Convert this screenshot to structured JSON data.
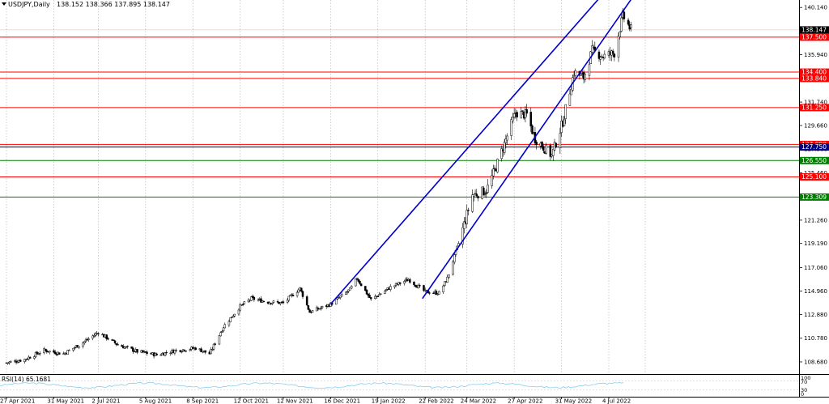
{
  "header": {
    "menu_icon": "triangle-down-icon",
    "symbol": "USDJPY,Daily",
    "ohlc": "138.152 138.366 137.895 138.147"
  },
  "rsi_panel": {
    "label": "RSI(14) 65.1681",
    "levels": [
      "100",
      "70",
      "30",
      "0"
    ],
    "current_value": 65.1681,
    "series_color": "#87CEEB"
  },
  "chart_data": {
    "type": "candlestick",
    "title": "USDJPY,Daily",
    "ylim": [
      107.6,
      140.8
    ],
    "price_ticks": [
      "140.140",
      "137.940",
      "135.940",
      "133.840",
      "131.740",
      "129.660",
      "127.560",
      "125.460",
      "123.360",
      "121.260",
      "119.190",
      "117.060",
      "114.960",
      "112.880",
      "110.780",
      "108.680"
    ],
    "x_ticks": [
      "27 Apr 2021",
      "31 May 2021",
      "2 Jul 2021",
      "5 Aug 2021",
      "8 Sep 2021",
      "12 Oct 2021",
      "12 Nov 2021",
      "16 Dec 2021",
      "19 Jan 2022",
      "22 Feb 2022",
      "24 Mar 2022",
      "27 Apr 2022",
      "31 May 2022",
      "4 Jul 2022"
    ],
    "grid": true,
    "current_price": "138.147",
    "horizontal_levels": [
      {
        "label": "137.500",
        "value": 137.5,
        "color": "#FF0000"
      },
      {
        "label": "134.400",
        "value": 134.4,
        "color": "#FF0000"
      },
      {
        "label": "133.840",
        "value": 133.84,
        "color": "#FF0000"
      },
      {
        "label": "131.250",
        "value": 131.25,
        "color": "#FF0000"
      },
      {
        "label": "127.980",
        "value": 127.98,
        "color": "#FF0000"
      },
      {
        "label": "127.750",
        "value": 127.75,
        "color": "#000080"
      },
      {
        "label": "126.550",
        "value": 126.55,
        "color": "#008000"
      },
      {
        "label": "125.100",
        "value": 125.1,
        "color": "#FF0000"
      },
      {
        "label": "123.309",
        "value": 123.309,
        "color": "#008000"
      }
    ],
    "trend_channel": {
      "color": "#0000CD",
      "upper": [
        {
          "date": "2021-12-16",
          "value": 113.8
        },
        {
          "date": "2022-07-01",
          "value": 141.5
        }
      ],
      "lower": [
        {
          "date": "2022-02-20",
          "value": 114.3
        },
        {
          "date": "2022-07-22",
          "value": 141.2
        }
      ]
    },
    "series": [
      {
        "x": "2021-04-27",
        "close": 108.6
      },
      {
        "x": "2021-05-10",
        "close": 108.9
      },
      {
        "x": "2021-05-24",
        "close": 109.7
      },
      {
        "x": "2021-06-07",
        "close": 109.4
      },
      {
        "x": "2021-06-21",
        "close": 110.4
      },
      {
        "x": "2021-07-02",
        "close": 111.3
      },
      {
        "x": "2021-07-16",
        "close": 110.2
      },
      {
        "x": "2021-07-30",
        "close": 109.6
      },
      {
        "x": "2021-08-13",
        "close": 109.3
      },
      {
        "x": "2021-08-27",
        "close": 109.7
      },
      {
        "x": "2021-09-10",
        "close": 109.9
      },
      {
        "x": "2021-09-20",
        "close": 109.4
      },
      {
        "x": "2021-09-30",
        "close": 111.8
      },
      {
        "x": "2021-10-12",
        "close": 113.6
      },
      {
        "x": "2021-10-20",
        "close": 114.3
      },
      {
        "x": "2021-11-01",
        "close": 114.0
      },
      {
        "x": "2021-11-12",
        "close": 113.9
      },
      {
        "x": "2021-11-24",
        "close": 115.2
      },
      {
        "x": "2021-12-01",
        "close": 113.1
      },
      {
        "x": "2021-12-16",
        "close": 113.8
      },
      {
        "x": "2021-12-30",
        "close": 115.1
      },
      {
        "x": "2022-01-04",
        "close": 116.1
      },
      {
        "x": "2022-01-14",
        "close": 114.2
      },
      {
        "x": "2022-01-28",
        "close": 115.3
      },
      {
        "x": "2022-02-10",
        "close": 116.0
      },
      {
        "x": "2022-02-22",
        "close": 114.9
      },
      {
        "x": "2022-03-04",
        "close": 114.8
      },
      {
        "x": "2022-03-10",
        "close": 116.1
      },
      {
        "x": "2022-03-18",
        "close": 119.2
      },
      {
        "x": "2022-03-28",
        "close": 123.5
      },
      {
        "x": "2022-04-07",
        "close": 123.9
      },
      {
        "x": "2022-04-14",
        "close": 126.0
      },
      {
        "x": "2022-04-21",
        "close": 128.4
      },
      {
        "x": "2022-04-28",
        "close": 130.8
      },
      {
        "x": "2022-05-06",
        "close": 130.6
      },
      {
        "x": "2022-05-12",
        "close": 128.5
      },
      {
        "x": "2022-05-24",
        "close": 127.0
      },
      {
        "x": "2022-06-01",
        "close": 130.0
      },
      {
        "x": "2022-06-09",
        "close": 134.4
      },
      {
        "x": "2022-06-16",
        "close": 133.9
      },
      {
        "x": "2022-06-22",
        "close": 136.3
      },
      {
        "x": "2022-06-30",
        "close": 135.8
      },
      {
        "x": "2022-07-08",
        "close": 136.1
      },
      {
        "x": "2022-07-14",
        "close": 139.4
      },
      {
        "x": "2022-07-20",
        "close": 138.147
      }
    ]
  }
}
